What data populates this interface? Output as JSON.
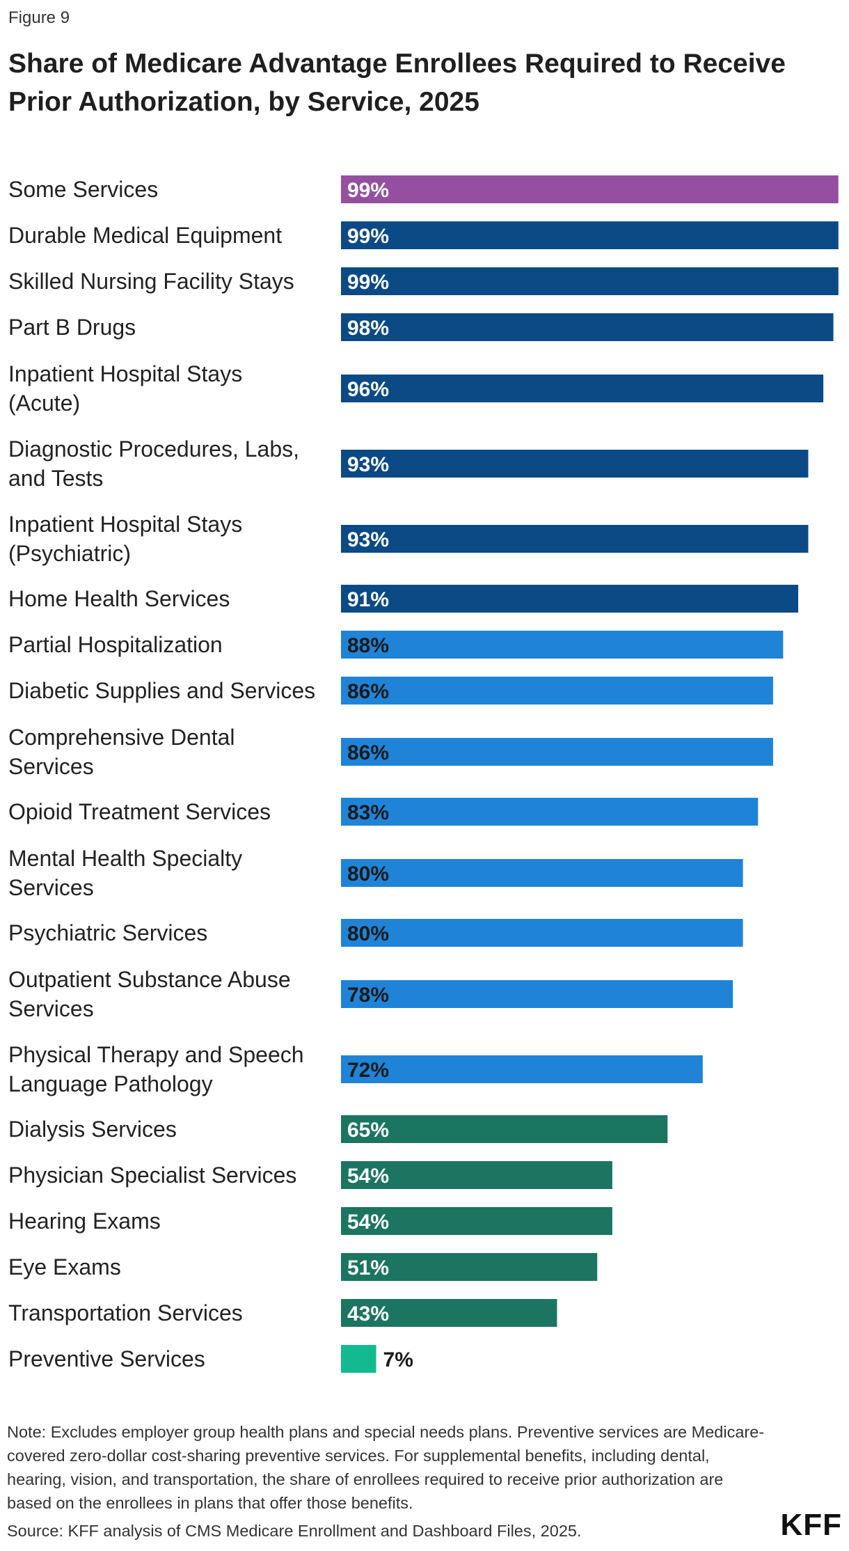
{
  "figure_label": "Figure 9",
  "title": "Share of Medicare Advantage Enrollees Required to Receive Prior Authorization, by Service, 2025",
  "note": "Note: Excludes employer group health plans and special needs plans. Preventive services are Medicare-covered zero-dollar cost-sharing preventive services. For supplemental benefits, including dental, hearing, vision, and transportation, the share of enrollees required to receive prior authorization are based on the enrollees in plans that offer those benefits.",
  "source": "Source: KFF analysis of CMS Medicare Enrollment and Dashboard Files, 2025.",
  "logo": "KFF",
  "colors": {
    "purple": "#944fa1",
    "navy": "#0b4a85",
    "blue": "#1f84d8",
    "teal": "#1c7561",
    "mint": "#13b98f"
  },
  "chart_data": {
    "type": "bar",
    "orientation": "horizontal",
    "title": "Share of Medicare Advantage Enrollees Required to Receive Prior Authorization, by Service, 2025",
    "xlim": [
      0,
      100
    ],
    "value_suffix": "%",
    "categories": [
      [
        "Some Services"
      ],
      [
        "Durable Medical Equipment"
      ],
      [
        "Skilled Nursing Facility Stays"
      ],
      [
        "Part B Drugs"
      ],
      [
        "Inpatient Hospital Stays",
        "(Acute)"
      ],
      [
        "Diagnostic Procedures, Labs,",
        "and Tests"
      ],
      [
        "Inpatient Hospital Stays",
        "(Psychiatric)"
      ],
      [
        "Home Health Services"
      ],
      [
        "Partial Hospitalization"
      ],
      [
        "Diabetic Supplies and Services"
      ],
      [
        "Comprehensive Dental",
        "Services"
      ],
      [
        "Opioid Treatment Services"
      ],
      [
        "Mental Health Specialty",
        "Services"
      ],
      [
        "Psychiatric Services"
      ],
      [
        "Outpatient Substance Abuse",
        "Services"
      ],
      [
        "Physical Therapy and Speech",
        "Language Pathology"
      ],
      [
        "Dialysis Services"
      ],
      [
        "Physician Specialist Services"
      ],
      [
        "Hearing Exams"
      ],
      [
        "Eye Exams"
      ],
      [
        "Transportation Services"
      ],
      [
        "Preventive Services"
      ]
    ],
    "values": [
      99,
      99,
      99,
      98,
      96,
      93,
      93,
      91,
      88,
      86,
      86,
      83,
      80,
      80,
      78,
      72,
      65,
      54,
      54,
      51,
      43,
      7
    ],
    "color_groups": [
      "purple",
      "navy",
      "navy",
      "navy",
      "navy",
      "navy",
      "navy",
      "navy",
      "blue",
      "blue",
      "blue",
      "blue",
      "blue",
      "blue",
      "blue",
      "blue",
      "teal",
      "teal",
      "teal",
      "teal",
      "teal",
      "mint"
    ]
  }
}
